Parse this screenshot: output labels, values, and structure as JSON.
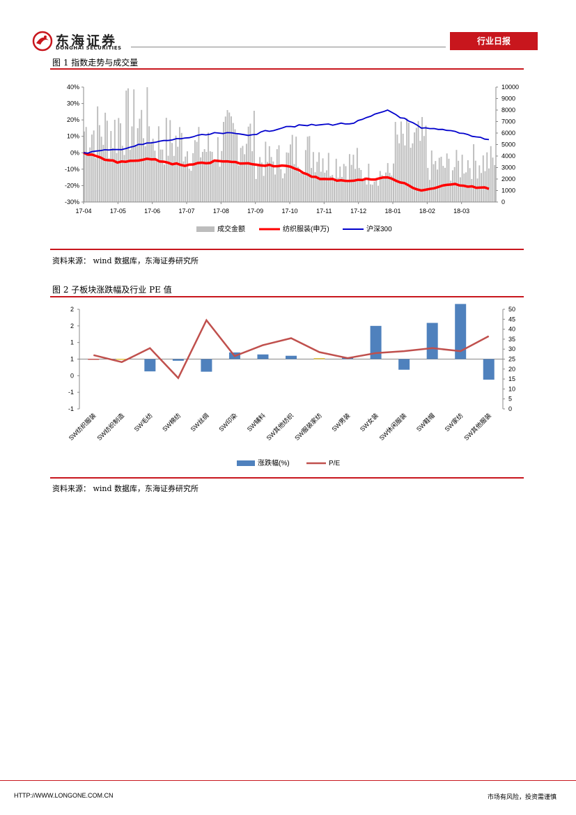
{
  "header": {
    "company_cn": "东海证券",
    "company_en": "DONGHAI SECURITIES",
    "report_type": "行业日报"
  },
  "figure1": {
    "title": "图 1    指数走势与成交量",
    "source": "资料来源：  wind 数据库，东海证券研究所",
    "chart_data": {
      "type": "line",
      "x_ticks": [
        "17-04",
        "17-05",
        "17-06",
        "17-07",
        "17-08",
        "17-09",
        "17-10",
        "17-11",
        "17-12",
        "18-01",
        "18-02",
        "18-03"
      ],
      "y_left_ticks": [
        "40%",
        "30%",
        "20%",
        "10%",
        "0%",
        "-10%",
        "-20%",
        "-30%"
      ],
      "y_right_ticks": [
        "10000",
        "9000",
        "8000",
        "7000",
        "6000",
        "5000",
        "4000",
        "3000",
        "2000",
        "1000",
        "0"
      ],
      "ylim_left": [
        -30,
        40
      ],
      "ylim_right": [
        0,
        10000
      ],
      "legend_placement": "bottom",
      "series": [
        {
          "name": "成交金额",
          "kind": "bar",
          "axis": "right",
          "color": "#bdbdbd",
          "x": [
            "17-04",
            "17-05",
            "17-06",
            "17-07",
            "17-08",
            "17-09",
            "17-10",
            "17-11",
            "17-12",
            "18-01",
            "18-02",
            "18-03"
          ],
          "values": [
            7500,
            8400,
            6400,
            5600,
            6800,
            4400,
            5300,
            4100,
            3000,
            6200,
            3800,
            4300
          ]
        },
        {
          "name": "纺织服装(申万)",
          "kind": "line",
          "axis": "left",
          "color": "#ff0000",
          "x": [
            "17-04",
            "17-05",
            "17-06",
            "17-07",
            "17-08",
            "17-09",
            "17-10",
            "17-11",
            "17-12",
            "18-01",
            "18-02",
            "18-03",
            "18-03-end"
          ],
          "values": [
            0,
            -6,
            -4,
            -8,
            -5,
            -7,
            -8,
            -16,
            -17,
            -15,
            -23,
            -19,
            -22
          ]
        },
        {
          "name": "沪深300",
          "kind": "line",
          "axis": "left",
          "color": "#0000cc",
          "x": [
            "17-04",
            "17-05",
            "17-06",
            "17-07",
            "17-08",
            "17-09",
            "17-10",
            "17-11",
            "17-12",
            "18-01",
            "18-02",
            "18-03",
            "18-03-end"
          ],
          "values": [
            0,
            2,
            6,
            9,
            12,
            11,
            16,
            17,
            18,
            26,
            15,
            13,
            8
          ]
        }
      ]
    }
  },
  "figure2": {
    "title": "图 2    子板块涨跌幅及行业 PE 值",
    "source": "资料来源：  wind 数据库，东海证券研究所",
    "chart_data": {
      "type": "bar",
      "categories": [
        "SW纺织服装",
        "SW纺织制造",
        "SW毛纺",
        "SW棉纺",
        "SW丝绸",
        "SW印染",
        "SW辅料",
        "SW其他纺织",
        "SW服装家纺",
        "SW男装",
        "SW女装",
        "SW休闲服装",
        "SW鞋帽",
        "SW家纺",
        "SW其他服装"
      ],
      "y_left_ticks": [
        "2",
        "2",
        "1",
        "1",
        "0",
        "-1",
        "-1"
      ],
      "y_right_ticks": [
        "50",
        "45",
        "40",
        "35",
        "30",
        "25",
        "20",
        "15",
        "10",
        "5",
        "0"
      ],
      "ylim_left": [
        -1.5,
        1.5
      ],
      "ylim_right": [
        0,
        50
      ],
      "legend_placement": "bottom",
      "series": [
        {
          "name": "涨跌幅(%)",
          "kind": "bar",
          "axis": "left",
          "color": "#4f81bd",
          "values": [
            0.01,
            0.01,
            -0.37,
            -0.05,
            -0.38,
            0.2,
            0.14,
            0.1,
            0.03,
            0.05,
            1.0,
            -0.32,
            1.09,
            1.66,
            -0.62
          ]
        },
        {
          "name": "P/E",
          "kind": "line",
          "axis": "right",
          "color": "#c0504d",
          "values": [
            27,
            23.5,
            30.5,
            15.5,
            44.5,
            26.5,
            32,
            35.5,
            28.5,
            25.5,
            28,
            29,
            30.5,
            29,
            36.5
          ]
        }
      ]
    }
  },
  "footer": {
    "url": "HTTP://WWW.LONGONE.COM.CN",
    "risk": "市场有风险，投资需谨慎"
  }
}
